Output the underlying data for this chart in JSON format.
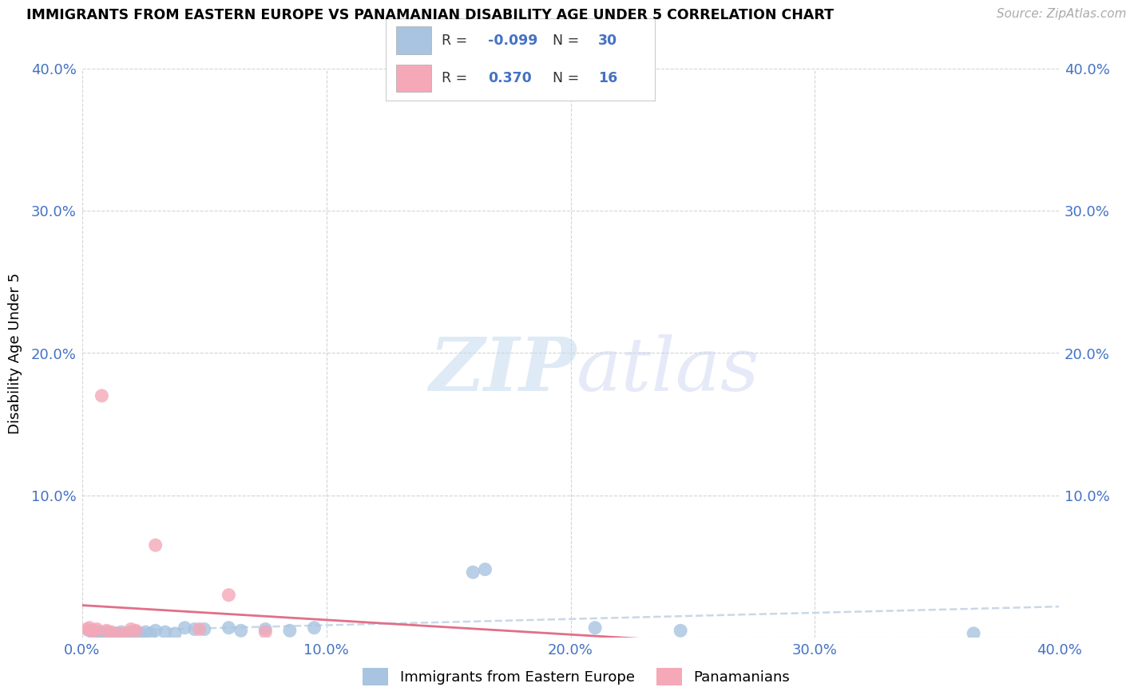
{
  "title": "IMMIGRANTS FROM EASTERN EUROPE VS PANAMANIAN DISABILITY AGE UNDER 5 CORRELATION CHART",
  "source": "Source: ZipAtlas.com",
  "ylabel": "Disability Age Under 5",
  "legend_label1": "Immigrants from Eastern Europe",
  "legend_label2": "Panamanians",
  "r1_text": "-0.099",
  "n1_text": "30",
  "r2_text": "0.370",
  "n2_text": "16",
  "color1": "#a8c4e0",
  "color2": "#f4a8b8",
  "line1_color": "#c8d8e8",
  "line2_color": "#e07088",
  "axis_label_color": "#4472c4",
  "grid_color": "#d0d0d0",
  "background_color": "#ffffff",
  "blue_scatter_x": [
    0.003,
    0.005,
    0.007,
    0.009,
    0.01,
    0.012,
    0.014,
    0.016,
    0.018,
    0.02,
    0.022,
    0.024,
    0.026,
    0.028,
    0.03,
    0.034,
    0.038,
    0.042,
    0.046,
    0.05,
    0.06,
    0.065,
    0.075,
    0.085,
    0.095,
    0.16,
    0.165,
    0.21,
    0.245,
    0.365
  ],
  "blue_scatter_y": [
    0.005,
    0.003,
    0.004,
    0.003,
    0.004,
    0.003,
    0.003,
    0.004,
    0.003,
    0.004,
    0.004,
    0.003,
    0.004,
    0.003,
    0.005,
    0.004,
    0.003,
    0.007,
    0.006,
    0.006,
    0.007,
    0.005,
    0.006,
    0.005,
    0.007,
    0.046,
    0.048,
    0.007,
    0.005,
    0.003
  ],
  "pink_scatter_x": [
    0.002,
    0.003,
    0.004,
    0.005,
    0.006,
    0.008,
    0.01,
    0.012,
    0.015,
    0.018,
    0.02,
    0.022,
    0.03,
    0.048,
    0.06,
    0.075
  ],
  "pink_scatter_y": [
    0.006,
    0.007,
    0.005,
    0.005,
    0.006,
    0.17,
    0.005,
    0.004,
    0.003,
    0.003,
    0.006,
    0.005,
    0.065,
    0.006,
    0.03,
    0.004
  ]
}
